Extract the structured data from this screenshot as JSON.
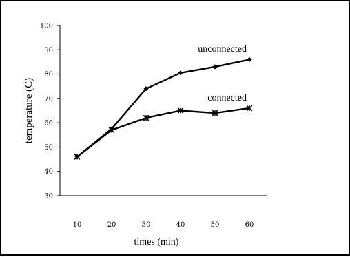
{
  "chart_data": {
    "type": "line",
    "xlabel": "times (min)",
    "ylabel": "temperature  (C)",
    "x": [
      10,
      20,
      30,
      40,
      50,
      60
    ],
    "ylim": [
      30,
      100
    ],
    "yticks": [
      30,
      40,
      50,
      60,
      70,
      80,
      90,
      100
    ],
    "grid": false,
    "series": [
      {
        "name": "unconnected",
        "values": [
          46,
          57.5,
          74,
          80.5,
          83,
          86
        ],
        "marker": "diamond",
        "color": "#000000"
      },
      {
        "name": "connected",
        "values": [
          46,
          57,
          62,
          65,
          64,
          66
        ],
        "marker": "star",
        "color": "#000000"
      }
    ]
  }
}
